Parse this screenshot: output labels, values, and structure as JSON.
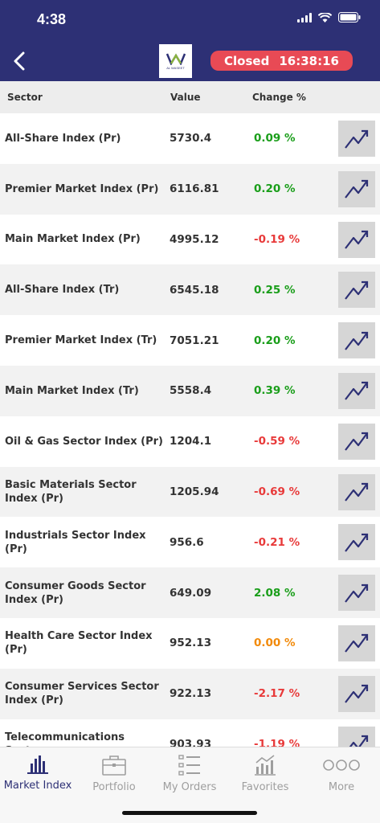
{
  "status_bar": {
    "time": "4:38"
  },
  "header": {
    "logo_text": "AL WASEET",
    "market_status": "Closed",
    "market_time": "16:38:16",
    "colors": {
      "background": "#2d3075",
      "status_badge": "#e84a55"
    }
  },
  "table": {
    "headers": {
      "sector": "Sector",
      "value": "Value",
      "change": "Change %"
    },
    "rows": [
      {
        "name": "All-Share Index (Pr)",
        "value": "5730.4",
        "change": "0.09 %",
        "trend": "up"
      },
      {
        "name": "Premier Market Index  (Pr)",
        "value": "6116.81",
        "change": "0.20 %",
        "trend": "up"
      },
      {
        "name": "Main Market Index (Pr)",
        "value": "4995.12",
        "change": "-0.19 %",
        "trend": "down"
      },
      {
        "name": "All-Share Index  (Tr)",
        "value": "6545.18",
        "change": "0.25 %",
        "trend": "up"
      },
      {
        "name": "Premier Market Index (Tr)",
        "value": "7051.21",
        "change": "0.20 %",
        "trend": "up"
      },
      {
        "name": "Main Market Index (Tr)",
        "value": "5558.4",
        "change": "0.39 %",
        "trend": "up"
      },
      {
        "name": "Oil & Gas Sector Index (Pr)",
        "value": "1204.1",
        "change": "-0.59 %",
        "trend": "down"
      },
      {
        "name": "Basic Materials Sector Index (Pr)",
        "value": "1205.94",
        "change": "-0.69 %",
        "trend": "down"
      },
      {
        "name": "Industrials Sector Index (Pr)",
        "value": "956.6",
        "change": "-0.21 %",
        "trend": "down"
      },
      {
        "name": "Consumer Goods Sector Index (Pr)",
        "value": "649.09",
        "change": "2.08 %",
        "trend": "up"
      },
      {
        "name": "Health Care Sector Index (Pr)",
        "value": "952.13",
        "change": "0.00 %",
        "trend": "flat"
      },
      {
        "name": "Consumer Services Sector Index (Pr)",
        "value": "922.13",
        "change": "-2.17 %",
        "trend": "down"
      },
      {
        "name": "Telecommunications Sector",
        "value": "903.93",
        "change": "-1.19 %",
        "trend": "down"
      }
    ],
    "colors": {
      "up": "#1a9e1a",
      "down": "#e83a3a",
      "flat": "#f28a0a"
    }
  },
  "tabbar": {
    "tabs": [
      {
        "label": "Market Index",
        "icon": "bar-chart-icon",
        "active": true
      },
      {
        "label": "Portfolio",
        "icon": "briefcase-icon",
        "active": false
      },
      {
        "label": "My Orders",
        "icon": "list-icon",
        "active": false
      },
      {
        "label": "Favorites",
        "icon": "chart-favorites-icon",
        "active": false
      },
      {
        "label": "More",
        "icon": "more-dots-icon",
        "active": false
      }
    ]
  }
}
